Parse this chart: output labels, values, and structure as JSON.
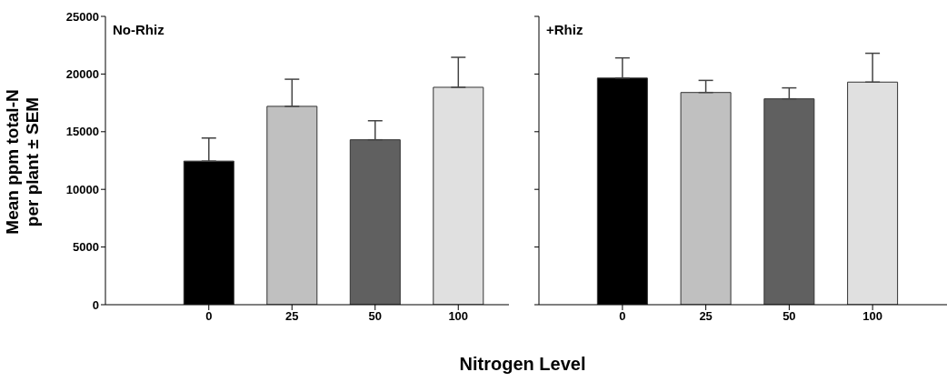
{
  "chart_data": [
    {
      "type": "bar",
      "title": "No-Rhiz",
      "ylabel": "Mean ppm total-N\nper plant  ± SEM",
      "xlabel": "Nitrogen Level",
      "categories": [
        "0",
        "25",
        "50",
        "100"
      ],
      "values": [
        12450,
        17200,
        14300,
        18850
      ],
      "colors": [
        "#000000",
        "#c0c0c0",
        "#606060",
        "#e0e0e0"
      ],
      "errors": [
        [
          12450,
          14450
        ],
        [
          17200,
          19550
        ],
        [
          14300,
          15950
        ],
        [
          18850,
          21450
        ]
      ],
      "ylim": [
        0,
        25000
      ],
      "yticks": [
        0,
        5000,
        10000,
        15000,
        20000,
        25000
      ],
      "grid": false,
      "legend": false
    },
    {
      "type": "bar",
      "title": "+Rhiz",
      "categories": [
        "0",
        "25",
        "50",
        "100"
      ],
      "values": [
        19650,
        18400,
        17850,
        19300
      ],
      "colors": [
        "#000000",
        "#c0c0c0",
        "#606060",
        "#e0e0e0"
      ],
      "errors": [
        [
          19650,
          21400
        ],
        [
          18400,
          19450
        ],
        [
          17850,
          18800
        ],
        [
          19300,
          21800
        ]
      ],
      "ylim": [
        0,
        25000
      ],
      "yticks": [
        0,
        5000,
        10000,
        15000,
        20000,
        25000
      ],
      "tick_labels": "x",
      "grid": false,
      "legend": false
    }
  ]
}
